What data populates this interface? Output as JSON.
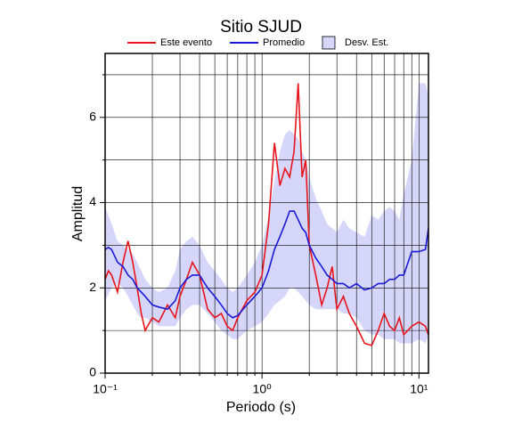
{
  "chart_data": {
    "type": "line",
    "title": "Sitio SJUD",
    "xlabel": "Periodo (s)",
    "ylabel": "Amplitud",
    "xscale": "log",
    "grid": true,
    "xlim": [
      0.1,
      11.5
    ],
    "ylim": [
      0,
      7.5
    ],
    "xticks": [
      {
        "value": 0.1,
        "label": "10⁻¹"
      },
      {
        "value": 1,
        "label": "10⁰"
      },
      {
        "value": 10,
        "label": "10¹"
      }
    ],
    "xminor": [
      0.2,
      0.3,
      0.4,
      0.5,
      0.6,
      0.7,
      0.8,
      0.9,
      2,
      3,
      4,
      5,
      6,
      7,
      8,
      9
    ],
    "yticks": [
      0,
      2,
      4,
      6
    ],
    "yminor": [
      1,
      3,
      5,
      7
    ],
    "x": [
      0.1,
      0.105,
      0.11,
      0.12,
      0.13,
      0.14,
      0.15,
      0.16,
      0.17,
      0.18,
      0.2,
      0.22,
      0.25,
      0.28,
      0.3,
      0.33,
      0.36,
      0.4,
      0.45,
      0.5,
      0.55,
      0.6,
      0.65,
      0.7,
      0.8,
      0.9,
      1.0,
      1.1,
      1.2,
      1.3,
      1.4,
      1.5,
      1.6,
      1.7,
      1.8,
      1.9,
      2.0,
      2.2,
      2.4,
      2.6,
      2.8,
      3.0,
      3.3,
      3.6,
      4.0,
      4.5,
      5.0,
      5.5,
      6.0,
      6.5,
      7.0,
      7.5,
      8.0,
      9.0,
      10,
      11,
      11.5
    ],
    "band": {
      "name": "Desv. Est.",
      "color": "#d6d6fa",
      "high": [
        3.9,
        3.7,
        3.5,
        3.1,
        3.0,
        2.9,
        2.8,
        2.6,
        2.4,
        2.2,
        2.0,
        1.9,
        2.0,
        2.4,
        2.9,
        3.1,
        3.2,
        3.0,
        2.6,
        2.4,
        2.2,
        2.0,
        1.9,
        2.0,
        2.3,
        2.6,
        3.0,
        3.7,
        4.5,
        5.2,
        5.6,
        5.7,
        5.6,
        5.5,
        5.2,
        5.0,
        4.6,
        4.1,
        3.8,
        3.5,
        3.4,
        3.3,
        3.6,
        3.4,
        3.3,
        3.2,
        3.7,
        3.6,
        3.8,
        3.9,
        3.8,
        3.6,
        4.2,
        5.0,
        6.8,
        6.8,
        6.5
      ],
      "low": [
        1.7,
        1.85,
        2.0,
        2.1,
        2.0,
        1.8,
        1.6,
        1.4,
        1.3,
        1.3,
        1.2,
        1.1,
        1.1,
        1.1,
        1.3,
        1.5,
        1.6,
        1.6,
        1.4,
        1.2,
        1.0,
        0.9,
        0.8,
        0.8,
        1.0,
        1.1,
        1.2,
        1.4,
        1.6,
        1.7,
        1.8,
        2.0,
        2.0,
        1.9,
        1.8,
        1.7,
        1.6,
        1.5,
        1.5,
        1.5,
        1.5,
        1.5,
        1.4,
        1.4,
        1.3,
        1.0,
        0.9,
        0.9,
        0.8,
        0.8,
        0.8,
        0.7,
        0.7,
        0.7,
        0.8,
        0.7,
        0.9
      ]
    },
    "series": [
      {
        "name": "Este evento",
        "color": "#e8141c",
        "values": [
          2.2,
          2.4,
          2.3,
          1.9,
          2.6,
          3.1,
          2.6,
          2.0,
          1.4,
          1.0,
          1.3,
          1.2,
          1.6,
          1.3,
          1.8,
          2.2,
          2.6,
          2.3,
          1.5,
          1.3,
          1.4,
          1.1,
          1.0,
          1.3,
          1.7,
          1.9,
          2.3,
          3.5,
          5.4,
          4.4,
          4.8,
          4.6,
          5.2,
          6.8,
          4.6,
          5.0,
          3.0,
          2.3,
          1.6,
          2.0,
          2.5,
          1.5,
          1.8,
          1.4,
          1.1,
          0.7,
          0.65,
          1.0,
          1.4,
          1.1,
          1.0,
          1.3,
          0.9,
          1.1,
          1.2,
          1.1,
          0.9
        ]
      },
      {
        "name": "Promedio",
        "color": "#1a1ad6",
        "values": [
          2.9,
          2.95,
          2.9,
          2.6,
          2.5,
          2.3,
          2.2,
          2.0,
          1.9,
          1.8,
          1.6,
          1.55,
          1.5,
          1.7,
          2.0,
          2.2,
          2.3,
          2.3,
          2.0,
          1.8,
          1.6,
          1.4,
          1.3,
          1.35,
          1.6,
          1.8,
          2.0,
          2.4,
          2.9,
          3.2,
          3.5,
          3.8,
          3.8,
          3.6,
          3.4,
          3.3,
          3.0,
          2.7,
          2.5,
          2.3,
          2.2,
          2.1,
          2.1,
          2.0,
          2.1,
          1.95,
          2.0,
          2.1,
          2.1,
          2.2,
          2.2,
          2.3,
          2.3,
          2.85,
          2.85,
          2.9,
          3.4
        ]
      }
    ]
  }
}
